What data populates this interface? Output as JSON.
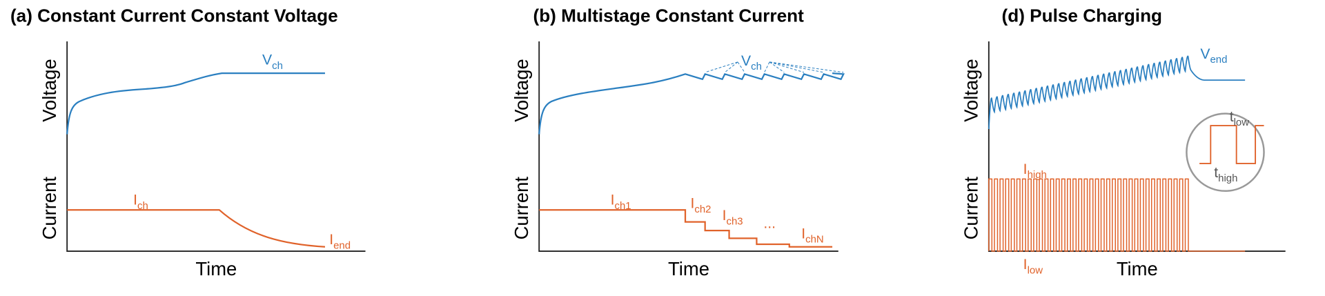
{
  "panels": [
    {
      "title": "(a) Constant Current Constant Voltage",
      "y_upper_label": "Voltage",
      "y_lower_label": "Current",
      "x_label": "Time",
      "annotations": [
        {
          "main": "V",
          "sub": "ch"
        },
        {
          "main": "I",
          "sub": "ch"
        },
        {
          "main": "I",
          "sub": "end"
        }
      ]
    },
    {
      "title": "(b) Multistage Constant Current",
      "y_upper_label": "Voltage",
      "y_lower_label": "Current",
      "x_label": "Time",
      "annotations": [
        {
          "main": "V",
          "sub": "ch"
        },
        {
          "main": "I",
          "sub": "ch1"
        },
        {
          "main": "I",
          "sub": "ch2"
        },
        {
          "main": "I",
          "sub": "ch3"
        },
        {
          "main": "...",
          "sub": ""
        },
        {
          "main": "I",
          "sub": "chN"
        }
      ]
    },
    {
      "title": "(d) Pulse Charging",
      "y_upper_label": "Voltage",
      "y_lower_label": "Current",
      "x_label": "Time",
      "annotations": [
        {
          "main": "V",
          "sub": "end"
        },
        {
          "main": "I",
          "sub": "high"
        },
        {
          "main": "I",
          "sub": "low"
        },
        {
          "main": "t",
          "sub": "low"
        },
        {
          "main": "t",
          "sub": "high"
        }
      ]
    }
  ]
}
